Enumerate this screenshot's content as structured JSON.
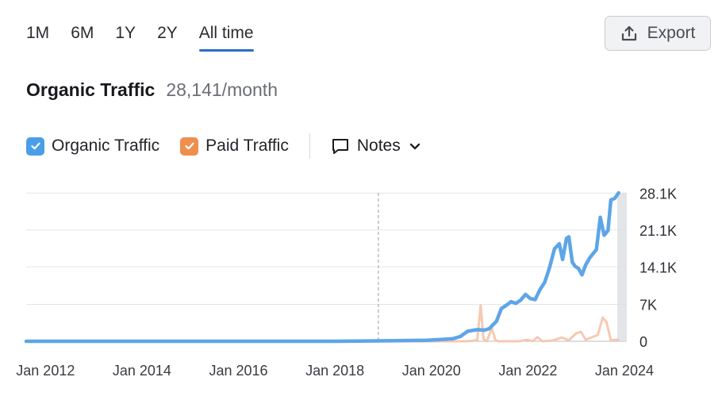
{
  "tabs": [
    {
      "label": "1M"
    },
    {
      "label": "6M"
    },
    {
      "label": "1Y"
    },
    {
      "label": "2Y"
    },
    {
      "label": "All time"
    }
  ],
  "active_tab": "All time",
  "export": {
    "label": "Export",
    "icon": "export-icon"
  },
  "header": {
    "title": "Organic Traffic",
    "value": "28,141/month"
  },
  "legend": {
    "items": [
      {
        "label": "Organic Traffic",
        "checked": true,
        "color": "#4a9ee8"
      },
      {
        "label": "Paid Traffic",
        "checked": true,
        "color": "#ef8f4e"
      }
    ],
    "notes_label": "Notes"
  },
  "chart_data": {
    "type": "line",
    "x_tick_labels": [
      "Jan 2012",
      "Jan 2014",
      "Jan 2016",
      "Jan 2018",
      "Jan 2020",
      "Jan 2022",
      "Jan 2024"
    ],
    "y_tick_labels": [
      "0",
      "7K",
      "14.1K",
      "21.1K",
      "28.1K"
    ],
    "y_ticks": [
      0,
      7000,
      14100,
      21100,
      28100
    ],
    "xlim": [
      2011.6,
      2024.05
    ],
    "ylim": [
      0,
      28141
    ],
    "annotation_line_x": 2018.9,
    "series": [
      {
        "name": "Organic Traffic",
        "color": "#5ea5e8",
        "points": [
          [
            2011.6,
            0
          ],
          [
            2012.0,
            0
          ],
          [
            2014.0,
            0
          ],
          [
            2016.0,
            0
          ],
          [
            2018.0,
            0
          ],
          [
            2018.9,
            80
          ],
          [
            2019.3,
            120
          ],
          [
            2019.6,
            150
          ],
          [
            2019.9,
            200
          ],
          [
            2020.2,
            350
          ],
          [
            2020.45,
            500
          ],
          [
            2020.6,
            900
          ],
          [
            2020.75,
            1900
          ],
          [
            2020.95,
            2200
          ],
          [
            2021.1,
            2100
          ],
          [
            2021.2,
            2400
          ],
          [
            2021.35,
            3800
          ],
          [
            2021.45,
            6200
          ],
          [
            2021.55,
            6800
          ],
          [
            2021.65,
            7500
          ],
          [
            2021.75,
            7200
          ],
          [
            2021.85,
            7800
          ],
          [
            2021.95,
            8900
          ],
          [
            2022.05,
            8100
          ],
          [
            2022.15,
            7900
          ],
          [
            2022.25,
            9800
          ],
          [
            2022.35,
            11200
          ],
          [
            2022.45,
            14000
          ],
          [
            2022.55,
            17500
          ],
          [
            2022.65,
            18500
          ],
          [
            2022.72,
            15500
          ],
          [
            2022.8,
            19500
          ],
          [
            2022.85,
            19800
          ],
          [
            2022.92,
            15000
          ],
          [
            2022.98,
            14200
          ],
          [
            2023.05,
            13800
          ],
          [
            2023.12,
            12600
          ],
          [
            2023.2,
            14500
          ],
          [
            2023.28,
            15800
          ],
          [
            2023.35,
            16600
          ],
          [
            2023.42,
            17400
          ],
          [
            2023.5,
            23500
          ],
          [
            2023.58,
            20100
          ],
          [
            2023.66,
            21000
          ],
          [
            2023.72,
            26800
          ],
          [
            2023.8,
            27100
          ],
          [
            2023.88,
            28141
          ]
        ]
      },
      {
        "name": "Paid Traffic",
        "color": "#f6c9b1",
        "points": [
          [
            2011.6,
            0
          ],
          [
            2020.7,
            0
          ],
          [
            2020.85,
            80
          ],
          [
            2020.95,
            250
          ],
          [
            2021.02,
            6800
          ],
          [
            2021.08,
            400
          ],
          [
            2021.15,
            0
          ],
          [
            2021.25,
            2500
          ],
          [
            2021.33,
            150
          ],
          [
            2021.4,
            0
          ],
          [
            2021.8,
            0
          ],
          [
            2022.0,
            300
          ],
          [
            2022.1,
            0
          ],
          [
            2022.2,
            800
          ],
          [
            2022.3,
            0
          ],
          [
            2022.5,
            100
          ],
          [
            2022.7,
            700
          ],
          [
            2022.85,
            200
          ],
          [
            2023.0,
            1500
          ],
          [
            2023.1,
            1800
          ],
          [
            2023.2,
            300
          ],
          [
            2023.45,
            1200
          ],
          [
            2023.55,
            4500
          ],
          [
            2023.63,
            3600
          ],
          [
            2023.72,
            200
          ],
          [
            2023.88,
            300
          ]
        ]
      }
    ],
    "grid": true,
    "hover_band": true
  }
}
